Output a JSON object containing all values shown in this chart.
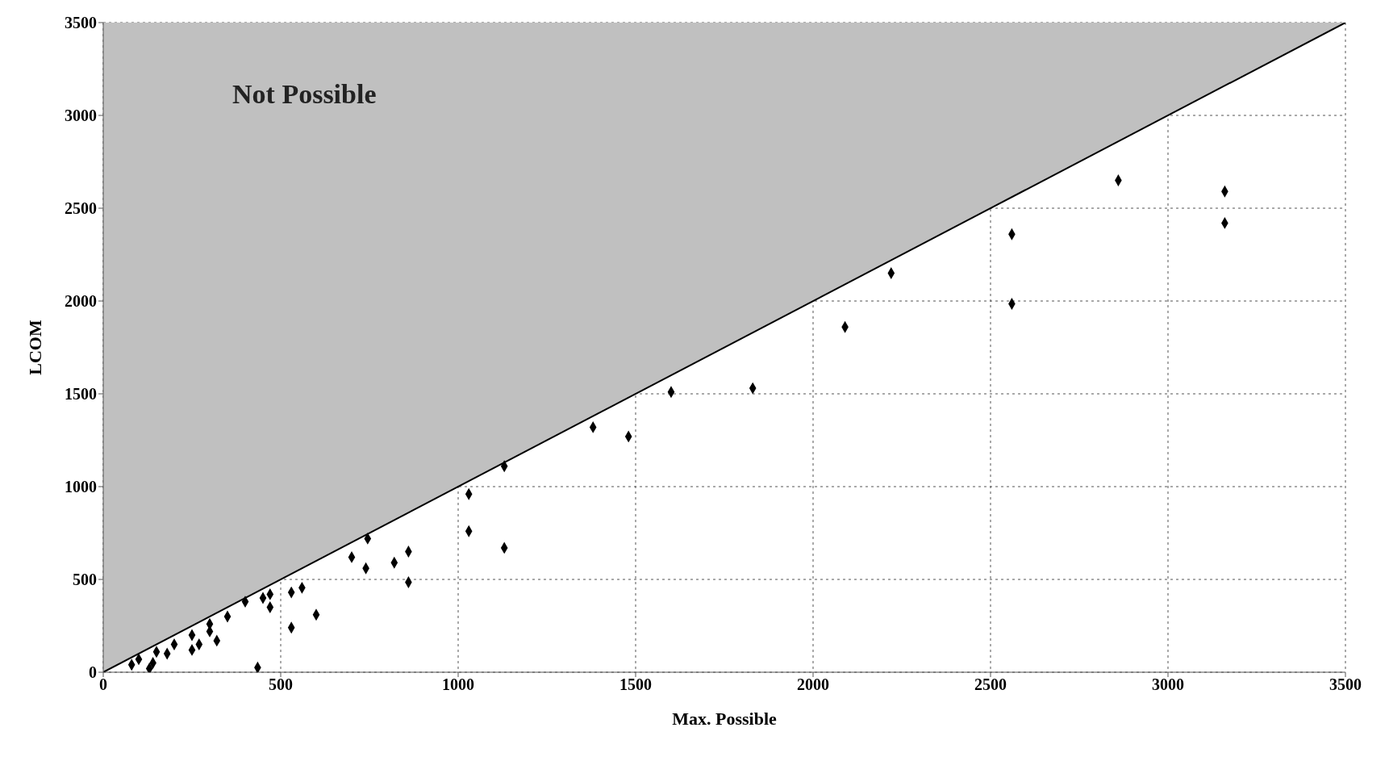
{
  "chart_data": {
    "type": "scatter",
    "xlabel": "Max. Possible",
    "ylabel": "LCOM",
    "annotations": [
      "Not Possible"
    ],
    "xlim": [
      0,
      3500
    ],
    "ylim": [
      0,
      3500
    ],
    "xticks": [
      0,
      500,
      1000,
      1500,
      2000,
      2500,
      3000,
      3500
    ],
    "yticks": [
      0,
      500,
      1000,
      1500,
      2000,
      2500,
      3000,
      3500
    ],
    "grid": true,
    "marker": "diamond",
    "series": [
      {
        "type": "line",
        "color": "#000000",
        "x": [
          0,
          3500
        ],
        "values": [
          0,
          3500
        ],
        "lower": [
          0,
          3500
        ],
        "upper": [
          3500,
          3500
        ],
        "marker": "none"
      },
      {
        "color": "#000000",
        "x": [
          2860,
          3160,
          3160,
          2560,
          2560,
          2220,
          2090,
          1830,
          1600,
          1380,
          1480,
          1130,
          1030,
          1030,
          1130,
          700,
          740,
          860,
          820,
          860,
          745,
          600,
          530,
          560,
          530,
          435,
          470,
          450,
          400,
          350,
          300,
          250,
          200,
          150,
          100,
          80,
          130,
          140,
          270,
          320,
          250,
          470,
          300,
          180
        ],
        "values": [
          2650,
          2590,
          2420,
          2360,
          1985,
          2150,
          1860,
          1530,
          1510,
          1320,
          1270,
          1110,
          960,
          760,
          670,
          620,
          560,
          650,
          590,
          485,
          720,
          310,
          240,
          455,
          430,
          25,
          420,
          400,
          380,
          300,
          260,
          200,
          150,
          110,
          70,
          40,
          20,
          50,
          150,
          170,
          120,
          350,
          220,
          100
        ]
      }
    ]
  }
}
